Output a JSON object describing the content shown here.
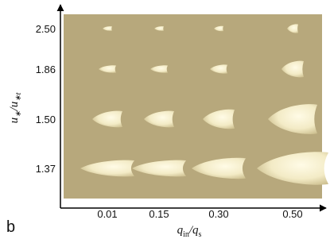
{
  "panel_label": "b",
  "x_axis": {
    "title": [
      "q",
      "in",
      "/q",
      "s"
    ],
    "labels": [
      "0.01",
      "0.15",
      "0.30",
      "0.50"
    ]
  },
  "y_axis": {
    "title": [
      "u",
      "∗",
      "/u",
      "∗t"
    ],
    "labels": [
      "2.50",
      "1.86",
      "1.50",
      "1.37"
    ]
  }
}
